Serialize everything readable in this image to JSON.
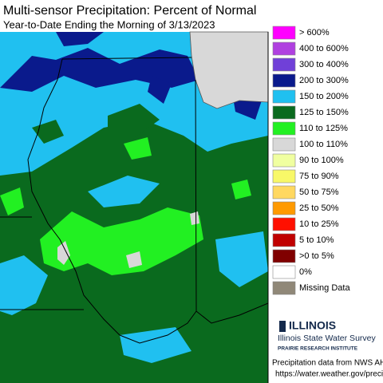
{
  "title": "Multi-sensor Precipitation: Percent of Normal",
  "subtitle": "Year-to-Date Ending the Morning of 3/13/2023",
  "legend": [
    {
      "label": "> 600%",
      "color": "#ff00ff"
    },
    {
      "label": "400 to 600%",
      "color": "#b040e0"
    },
    {
      "label": "300 to 400%",
      "color": "#7040d8"
    },
    {
      "label": "200 to 300%",
      "color": "#0a1a8c"
    },
    {
      "label": "150 to 200%",
      "color": "#20c0f0"
    },
    {
      "label": "125 to 150%",
      "color": "#0a6a1e"
    },
    {
      "label": "110 to 125%",
      "color": "#22f022"
    },
    {
      "label": "100 to 110%",
      "color": "#d8d8d8"
    },
    {
      "label": "90 to 100%",
      "color": "#f0ffa0"
    },
    {
      "label": "75 to 90%",
      "color": "#f8f868"
    },
    {
      "label": "50 to 75%",
      "color": "#ffd860"
    },
    {
      "label": "25 to 50%",
      "color": "#ff9a00"
    },
    {
      "label": "10 to 25%",
      "color": "#ff1000"
    },
    {
      "label": "5 to 10%",
      "color": "#c00000"
    },
    {
      "label": ">0 to 5%",
      "color": "#800000"
    },
    {
      "label": "0%",
      "color": "#ffffff"
    },
    {
      "label": "Missing Data",
      "color": "#908878"
    }
  ],
  "logo": {
    "name": "ILLINOIS",
    "org": "Illinois State Water Survey",
    "institute": "PRAIRIE RESEARCH INSTITUTE"
  },
  "source": [
    "Precipitation data from NWS AHPS.",
    "https://water.weather.gov/precip"
  ]
}
